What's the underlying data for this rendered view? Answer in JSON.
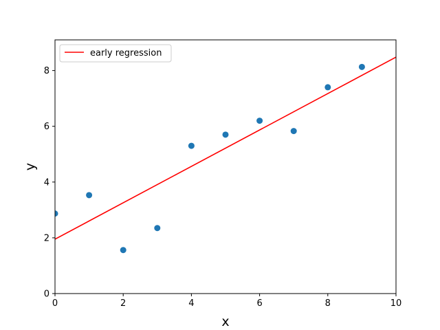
{
  "chart_data": {
    "type": "scatter",
    "title": "",
    "xlabel": "x",
    "ylabel": "y",
    "xlim": [
      0,
      10
    ],
    "ylim": [
      0,
      9.1
    ],
    "xticks": [
      0,
      2,
      4,
      6,
      8,
      10
    ],
    "yticks": [
      0,
      2,
      4,
      6,
      8
    ],
    "grid": false,
    "legend_position": "top-left",
    "points": {
      "color": "#1f77b4",
      "x": [
        0,
        1,
        2,
        3,
        4,
        5,
        6,
        7,
        8,
        9
      ],
      "y": [
        2.87,
        3.53,
        1.56,
        2.35,
        5.3,
        5.7,
        6.2,
        5.83,
        7.4,
        8.13
      ]
    },
    "line": {
      "name": "early regression",
      "color": "#ff0000",
      "x": [
        0,
        10
      ],
      "y": [
        1.95,
        8.48
      ]
    }
  }
}
